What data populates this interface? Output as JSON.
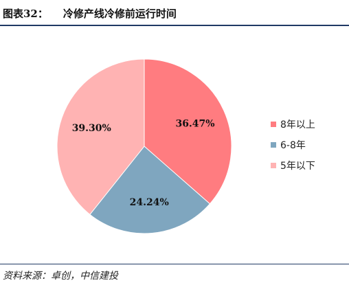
{
  "header": {
    "figure_label": "图表32：",
    "title": "冷修产线冷修前运行时间"
  },
  "source_text": "资料来源：卓创，中信建投",
  "chart_data": {
    "type": "pie",
    "categories": [
      "8年以上",
      "6-8年",
      "5年以下"
    ],
    "values": [
      36.47,
      24.24,
      39.3
    ],
    "data_labels": [
      "36.47%",
      "24.24%",
      "39.30%"
    ],
    "colors": [
      "#ff7c80",
      "#7fa6bf",
      "#ffb3b3"
    ],
    "legend_position": "right"
  }
}
